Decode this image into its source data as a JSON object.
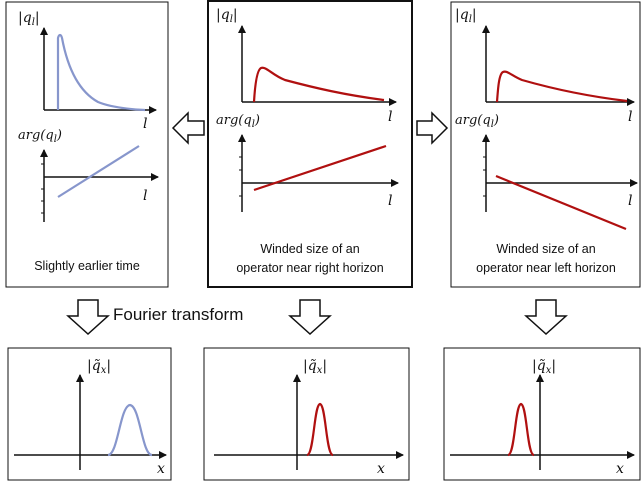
{
  "colors": {
    "blue_curve": "#8796cc",
    "red_curve": "#b01010",
    "axis": "#111111",
    "box_border": "#111111"
  },
  "labels": {
    "abs_q": "|q",
    "abs_q_sub": "l",
    "abs_q_close": "|",
    "arg_q": "arg(q",
    "arg_q_sub": "l",
    "arg_q_close": ")",
    "l_axis": "l",
    "x_axis": "x",
    "abs_qtilde": "|q̃",
    "abs_qtilde_sub": "x",
    "abs_qtilde_close": "|"
  },
  "captions": {
    "left": "Slightly earlier time",
    "center_line1": "Winded size of an",
    "center_line2": "operator near right horizon",
    "right_line1": "Winded size of an",
    "right_line2": "operator near left horizon"
  },
  "fourier_transform": "Fourier transform"
}
